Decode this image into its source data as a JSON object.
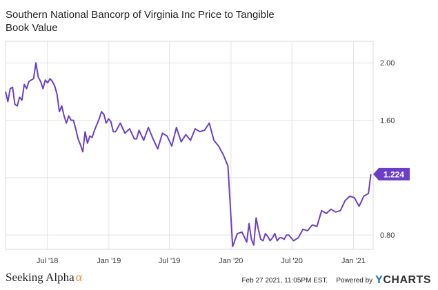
{
  "header": {
    "title": "Southern National Bancorp of Virginia Inc Price to Tangible Book Value"
  },
  "footer": {
    "brand": "Seeking Alpha",
    "brand_symbol": "α",
    "timestamp": "Feb 27 2021, 11:05PM EST.",
    "powered_by": "Powered by",
    "provider": "YCHARTS",
    "provider_y": "Y",
    "provider_rest": "CHARTS"
  },
  "colors": {
    "line": "#6a3fc6",
    "grid": "#e3e3e3",
    "axis_text": "#333333"
  },
  "chart_data": {
    "type": "line",
    "title": "Southern National Bancorp of Virginia Inc Price to Tangible Book Value",
    "xlabel": "",
    "ylabel": "",
    "x_range": [
      "2018-02-26",
      "2021-03-01"
    ],
    "ylim": [
      0.7,
      2.15
    ],
    "y_ticks": [
      0.8,
      1.2,
      1.6,
      2.0
    ],
    "y_tick_labels": [
      "0.80",
      "",
      "1.60",
      "2.00"
    ],
    "x_ticks": [
      "2018-07-01",
      "2019-01-01",
      "2019-07-01",
      "2020-01-01",
      "2020-07-01",
      "2021-01-01"
    ],
    "x_tick_labels": [
      "Jul '18",
      "Jan '19",
      "Jul '19",
      "Jan '20",
      "Jul '20",
      "Jan '21"
    ],
    "grid": true,
    "last_value_label": "1.224",
    "series": [
      {
        "x": [
          "2018-02-26",
          "2018-03-05",
          "2018-03-12",
          "2018-03-19",
          "2018-03-26",
          "2018-04-02",
          "2018-04-09",
          "2018-04-16",
          "2018-04-23",
          "2018-04-30",
          "2018-05-07",
          "2018-05-14",
          "2018-05-21",
          "2018-05-28",
          "2018-06-04",
          "2018-06-11",
          "2018-06-18",
          "2018-06-25",
          "2018-07-02",
          "2018-07-09",
          "2018-07-16",
          "2018-07-23",
          "2018-07-30",
          "2018-08-06",
          "2018-08-13",
          "2018-08-20",
          "2018-08-27",
          "2018-09-03",
          "2018-09-10",
          "2018-09-17",
          "2018-09-24",
          "2018-10-01",
          "2018-10-08",
          "2018-10-15",
          "2018-10-22",
          "2018-10-29",
          "2018-11-05",
          "2018-11-12",
          "2018-11-19",
          "2018-11-26",
          "2018-12-03",
          "2018-12-10",
          "2018-12-17",
          "2018-12-24",
          "2018-12-31",
          "2019-01-07",
          "2019-01-14",
          "2019-01-21",
          "2019-02-04",
          "2019-02-18",
          "2019-03-04",
          "2019-03-18",
          "2019-03-25",
          "2019-04-01",
          "2019-04-15",
          "2019-04-29",
          "2019-05-13",
          "2019-05-27",
          "2019-06-10",
          "2019-06-24",
          "2019-07-08",
          "2019-07-22",
          "2019-08-05",
          "2019-08-19",
          "2019-09-02",
          "2019-09-16",
          "2019-09-30",
          "2019-10-14",
          "2019-10-28",
          "2019-11-11",
          "2019-11-25",
          "2019-12-09",
          "2019-12-23",
          "2020-01-06",
          "2020-01-20",
          "2020-02-03",
          "2020-02-17",
          "2020-02-24",
          "2020-03-02",
          "2020-03-09",
          "2020-03-16",
          "2020-03-23",
          "2020-03-30",
          "2020-04-06",
          "2020-04-13",
          "2020-04-20",
          "2020-04-27",
          "2020-05-04",
          "2020-05-11",
          "2020-05-18",
          "2020-05-25",
          "2020-06-01",
          "2020-06-08",
          "2020-06-15",
          "2020-06-22",
          "2020-07-06",
          "2020-07-20",
          "2020-08-03",
          "2020-08-17",
          "2020-08-31",
          "2020-09-14",
          "2020-09-28",
          "2020-10-12",
          "2020-10-26",
          "2020-11-09",
          "2020-11-23",
          "2020-12-07",
          "2020-12-21",
          "2021-01-04",
          "2021-01-18",
          "2021-02-01",
          "2021-02-15",
          "2021-02-22"
        ],
        "values": [
          1.8,
          1.73,
          1.82,
          1.83,
          1.71,
          1.7,
          1.76,
          1.74,
          1.85,
          1.82,
          1.87,
          1.88,
          1.89,
          2.0,
          1.9,
          1.87,
          1.82,
          1.88,
          1.86,
          1.89,
          1.87,
          1.84,
          1.78,
          1.66,
          1.7,
          1.63,
          1.58,
          1.63,
          1.6,
          1.6,
          1.54,
          1.47,
          1.43,
          1.38,
          1.52,
          1.44,
          1.49,
          1.48,
          1.53,
          1.57,
          1.61,
          1.66,
          1.64,
          1.58,
          1.61,
          1.59,
          1.52,
          1.52,
          1.58,
          1.51,
          1.54,
          1.47,
          1.47,
          1.53,
          1.46,
          1.55,
          1.47,
          1.4,
          1.51,
          1.49,
          1.42,
          1.55,
          1.45,
          1.5,
          1.46,
          1.54,
          1.52,
          1.53,
          1.58,
          1.46,
          1.42,
          1.36,
          1.28,
          0.72,
          0.81,
          0.82,
          0.75,
          0.88,
          0.77,
          0.73,
          0.92,
          0.84,
          0.77,
          0.76,
          0.81,
          0.79,
          0.76,
          0.78,
          0.81,
          0.76,
          0.78,
          0.78,
          0.77,
          0.8,
          0.8,
          0.76,
          0.78,
          0.84,
          0.83,
          0.87,
          0.86,
          0.97,
          0.95,
          0.98,
          0.96,
          0.97,
          1.04,
          1.07,
          1.06,
          1.0,
          1.07,
          1.09,
          1.224
        ]
      }
    ]
  }
}
